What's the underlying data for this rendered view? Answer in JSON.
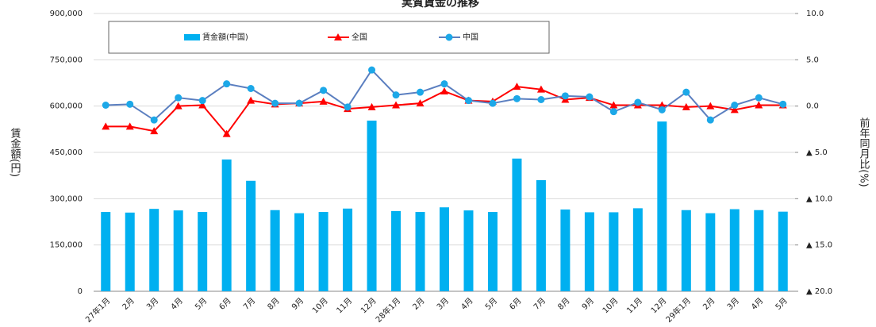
{
  "chart_data": {
    "type": "combo",
    "title": "実質賃金の推移",
    "y_label": "賃金額(円)",
    "y2_label": "前年同月比(%)",
    "categories": [
      "27年1月",
      "2月",
      "3月",
      "4月",
      "5月",
      "6月",
      "7月",
      "8月",
      "9月",
      "10月",
      "11月",
      "12月",
      "28年1月",
      "2月",
      "3月",
      "4月",
      "5月",
      "6月",
      "7月",
      "8月",
      "9月",
      "10月",
      "11月",
      "12月",
      "29年1月",
      "2月",
      "3月",
      "4月",
      "5月"
    ],
    "series": [
      {
        "name": "賃金額(中国)",
        "type": "bar",
        "axis": "y",
        "color": "#00b0f0",
        "values": [
          257000,
          255000,
          267000,
          262000,
          257000,
          427000,
          358000,
          263000,
          253000,
          257000,
          268000,
          553000,
          260000,
          257000,
          272000,
          262000,
          257000,
          430000,
          360000,
          265000,
          256000,
          256000,
          269000,
          550000,
          263000,
          253000,
          266000,
          263000,
          258000
        ]
      },
      {
        "name": "全国",
        "type": "line",
        "axis": "y2",
        "color": "#ff0000",
        "marker": "triangle",
        "marker_color": "#ff0000",
        "values": [
          -2.2,
          -2.2,
          -2.7,
          0.0,
          0.1,
          -3.0,
          0.6,
          0.2,
          0.3,
          0.5,
          -0.3,
          -0.1,
          0.1,
          0.3,
          1.6,
          0.6,
          0.5,
          2.1,
          1.8,
          0.7,
          0.9,
          0.1,
          0.1,
          0.1,
          -0.1,
          0.0,
          -0.4,
          0.1,
          0.1
        ]
      },
      {
        "name": "中国",
        "type": "line",
        "axis": "y2",
        "color": "#5b7fc0",
        "marker": "circle",
        "marker_color": "#1ca8e8",
        "values": [
          0.1,
          0.2,
          -1.5,
          0.9,
          0.6,
          2.4,
          1.9,
          0.3,
          0.3,
          1.7,
          -0.1,
          3.9,
          1.2,
          1.5,
          2.4,
          0.6,
          0.3,
          0.8,
          0.7,
          1.1,
          1.0,
          -0.6,
          0.4,
          -0.4,
          1.5,
          -1.5,
          0.1,
          0.9,
          0.2
        ]
      }
    ],
    "ylim": [
      0,
      900000
    ],
    "yticks": [
      0,
      {
        "value": 150000,
        "label": "150,000"
      },
      {
        "value": 300000,
        "label": "300,000"
      },
      {
        "value": 450000,
        "label": "450,000"
      },
      {
        "value": 600000,
        "label": "600,000"
      },
      {
        "value": 750000,
        "label": "750,000"
      },
      {
        "value": 900000,
        "label": "900,000"
      }
    ],
    "y2lim": [
      -20,
      10
    ],
    "y2ticks": [
      {
        "value": 10,
        "label": "10.0"
      },
      {
        "value": 5,
        "label": "5.0"
      },
      {
        "value": 0,
        "label": "0.0"
      },
      {
        "value": -5,
        "label": "▲ 5.0"
      },
      {
        "value": -10,
        "label": "▲ 10.0"
      },
      {
        "value": -15,
        "label": "▲ 15.0"
      },
      {
        "value": -20,
        "label": "▲ 20.0"
      }
    ],
    "grid": true
  }
}
